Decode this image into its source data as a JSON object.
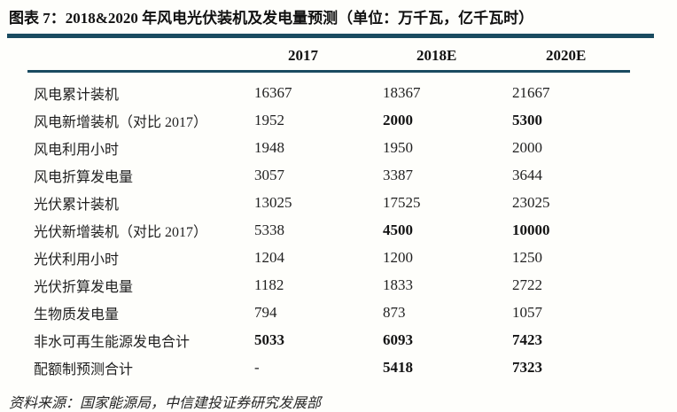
{
  "figure": {
    "title": "图表  7：2018&2020 年风电光伏装机及发电量预测（单位：万千瓦，亿千瓦时）",
    "source": "资料来源：国家能源局，中信建投证券研究发展部",
    "accent_color": "#1a4b60"
  },
  "chart_data": {
    "type": "table",
    "title": "2018&2020 年风电光伏装机及发电量预测",
    "units": "万千瓦，亿千瓦时",
    "columns": [
      "2017",
      "2018E",
      "2020E"
    ],
    "rows": [
      {
        "label": "风电累计装机",
        "values": [
          "16367",
          "18367",
          "21667"
        ],
        "bold": [
          false,
          false,
          false
        ]
      },
      {
        "label": "风电新增装机（对比 2017）",
        "values": [
          "1952",
          "2000",
          "5300"
        ],
        "bold": [
          false,
          true,
          true
        ]
      },
      {
        "label": "风电利用小时",
        "values": [
          "1948",
          "1950",
          "2000"
        ],
        "bold": [
          false,
          false,
          false
        ]
      },
      {
        "label": "风电折算发电量",
        "values": [
          "3057",
          "3387",
          "3644"
        ],
        "bold": [
          false,
          false,
          false
        ]
      },
      {
        "label": "光伏累计装机",
        "values": [
          "13025",
          "17525",
          "23025"
        ],
        "bold": [
          false,
          false,
          false
        ]
      },
      {
        "label": "光伏新增装机（对比 2017）",
        "values": [
          "5338",
          "4500",
          "10000"
        ],
        "bold": [
          false,
          true,
          true
        ]
      },
      {
        "label": "光伏利用小时",
        "values": [
          "1204",
          "1200",
          "1250"
        ],
        "bold": [
          false,
          false,
          false
        ]
      },
      {
        "label": "光伏折算发电量",
        "values": [
          "1182",
          "1833",
          "2722"
        ],
        "bold": [
          false,
          false,
          false
        ]
      },
      {
        "label": "生物质发电量",
        "values": [
          "794",
          "873",
          "1057"
        ],
        "bold": [
          false,
          false,
          false
        ]
      },
      {
        "label": "非水可再生能源发电合计",
        "values": [
          "5033",
          "6093",
          "7423"
        ],
        "bold": [
          true,
          true,
          true
        ]
      },
      {
        "label": "配额制预测合计",
        "values": [
          "-",
          "5418",
          "7323"
        ],
        "bold": [
          false,
          true,
          true
        ]
      }
    ]
  }
}
